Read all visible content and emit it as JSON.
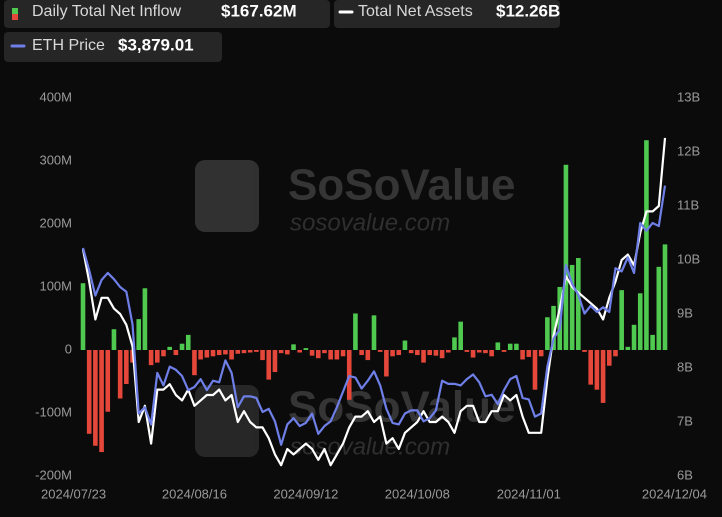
{
  "chart_data": {
    "type": "combo",
    "watermark": [
      "SoSoValue",
      "sosovalue.com"
    ],
    "categories": [
      "2024/07/23",
      null,
      null,
      null,
      null,
      null,
      null,
      null,
      null,
      null,
      null,
      null,
      null,
      null,
      null,
      null,
      null,
      null,
      "2024/08/16",
      null,
      null,
      null,
      null,
      null,
      null,
      null,
      null,
      null,
      null,
      null,
      null,
      null,
      null,
      null,
      null,
      null,
      "2024/09/12",
      null,
      null,
      null,
      null,
      null,
      null,
      null,
      null,
      null,
      null,
      null,
      null,
      null,
      null,
      null,
      null,
      null,
      "2024/10/08",
      null,
      null,
      null,
      null,
      null,
      null,
      null,
      null,
      null,
      null,
      null,
      null,
      null,
      null,
      null,
      null,
      null,
      "2024/11/01",
      null,
      null,
      null,
      null,
      null,
      null,
      null,
      null,
      null,
      null,
      null,
      null,
      null,
      null,
      null,
      null,
      null,
      null,
      null,
      null,
      null,
      "2024/12/04"
    ],
    "ylim": [
      -200,
      400
    ],
    "yticks": [
      {
        "value": -200,
        "label": "-200M"
      },
      {
        "value": -100,
        "label": "-100M"
      },
      {
        "value": 0,
        "label": "0"
      },
      {
        "value": 100,
        "label": "100M"
      },
      {
        "value": 200,
        "label": "200M"
      },
      {
        "value": 300,
        "label": "300M"
      },
      {
        "value": 400,
        "label": "400M"
      }
    ],
    "y2lim": [
      6,
      13
    ],
    "y2ticks": [
      {
        "value": 6,
        "label": "6B"
      },
      {
        "value": 7,
        "label": "7B"
      },
      {
        "value": 8,
        "label": "8B"
      },
      {
        "value": 9,
        "label": "9B"
      },
      {
        "value": 10,
        "label": "10B"
      },
      {
        "value": 11,
        "label": "11B"
      },
      {
        "value": 12,
        "label": "12B"
      },
      {
        "value": 13,
        "label": "13B"
      }
    ],
    "y3lim": [
      2020,
      4440
    ],
    "grid": false,
    "series": [
      {
        "name": "Daily Total Net Inflow",
        "type": "bar",
        "color": "#4fc94f",
        "negative_color": "#e5483a",
        "current_label": "$167.62M",
        "values": [
          106,
          -133,
          -152,
          -162,
          -98,
          33,
          -77,
          -54,
          -20,
          49,
          98,
          -24,
          -20,
          -10,
          5,
          -8,
          10,
          24,
          -40,
          -15,
          -12,
          -10,
          -8,
          -7,
          -15,
          -6,
          -5,
          -4,
          -3,
          -16,
          -47,
          -35,
          -5,
          -7,
          9,
          -4,
          3,
          -9,
          -13,
          -5,
          -15,
          -15,
          -10,
          -79,
          58,
          -8,
          -16,
          55,
          -3,
          -42,
          -10,
          -8,
          15,
          -5,
          -8,
          -20,
          -8,
          -9,
          -13,
          -4,
          20,
          45,
          -3,
          -12,
          -4,
          -5,
          -10,
          12,
          -3,
          10,
          10,
          -15,
          -11,
          -63,
          -10,
          52,
          70,
          100,
          294,
          135,
          146,
          -3,
          -55,
          -63,
          -84,
          -25,
          -10,
          95,
          5,
          40,
          90,
          333,
          24,
          132,
          167.62
        ]
      },
      {
        "name": "Total Net Assets",
        "type": "line",
        "axis": "y2",
        "color": "#ffffff",
        "current_label": "$12.26B",
        "values": [
          10.2,
          9.6,
          8.9,
          9.3,
          9.3,
          9.1,
          9.0,
          8.8,
          8.4,
          7.0,
          7.3,
          6.6,
          7.6,
          7.6,
          7.7,
          7.5,
          7.4,
          7.6,
          7.3,
          7.4,
          7.5,
          7.5,
          7.6,
          7.4,
          7.5,
          7.0,
          7.2,
          7.0,
          6.9,
          6.9,
          6.7,
          6.4,
          6.2,
          6.5,
          6.4,
          6.5,
          6.6,
          6.5,
          6.3,
          6.5,
          6.2,
          6.4,
          6.6,
          6.9,
          7.1,
          7.1,
          7.2,
          7.0,
          7.1,
          6.6,
          6.7,
          6.5,
          6.8,
          6.9,
          7.0,
          7.2,
          7.0,
          7.0,
          7.1,
          7.0,
          6.8,
          7.2,
          7.3,
          7.3,
          7.0,
          7.0,
          7.2,
          7.2,
          7.5,
          7.4,
          7.5,
          7.1,
          6.8,
          6.8,
          6.8,
          7.8,
          8.6,
          9.1,
          9.7,
          9.5,
          9.4,
          9.3,
          9.2,
          9.1,
          8.9,
          9.3,
          9.6,
          10.0,
          10.1,
          9.9,
          10.5,
          10.9,
          10.9,
          11.0,
          12.26
        ]
      },
      {
        "name": "ETH Price",
        "type": "line",
        "axis": "y3",
        "color": "#6f7fe8",
        "current_label": "$3,879.01",
        "values": [
          3480,
          3337,
          3175,
          3275,
          3320,
          3280,
          3230,
          3200,
          2990,
          2420,
          2460,
          2350,
          2680,
          2600,
          2720,
          2700,
          2660,
          2570,
          2590,
          2640,
          2570,
          2630,
          2620,
          2760,
          2680,
          2460,
          2530,
          2530,
          2520,
          2430,
          2450,
          2370,
          2220,
          2350,
          2390,
          2340,
          2360,
          2420,
          2290,
          2340,
          2370,
          2460,
          2560,
          2660,
          2650,
          2580,
          2630,
          2690,
          2600,
          2450,
          2360,
          2350,
          2420,
          2440,
          2440,
          2370,
          2390,
          2440,
          2630,
          2610,
          2610,
          2600,
          2640,
          2670,
          2620,
          2530,
          2540,
          2480,
          2570,
          2640,
          2660,
          2520,
          2510,
          2400,
          2420,
          2720,
          2900,
          2960,
          3370,
          3250,
          3180,
          3060,
          3110,
          3070,
          3100,
          3070,
          3350,
          3330,
          3420,
          3320,
          3640,
          3590,
          3640,
          3620,
          3879.01
        ]
      }
    ]
  }
}
